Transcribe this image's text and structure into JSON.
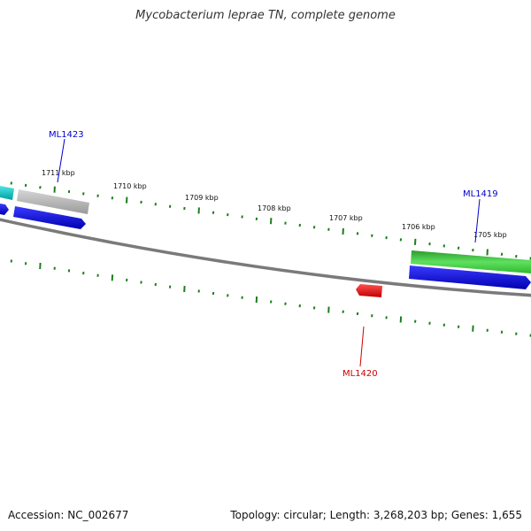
{
  "title": "Mycobacterium leprae TN, complete genome",
  "footer": {
    "accession": "Accession: NC_002677",
    "summary": "Topology: circular; Length: 3,268,203 bp; Genes: 1,655"
  },
  "ruler_labels": [
    "1711 kbp",
    "1710 kbp",
    "1709 kbp",
    "1708 kbp",
    "1707 kbp",
    "1706 kbp",
    "1705 kbp"
  ],
  "gene_labels": {
    "ml1423": "ML1423",
    "ml1419": "ML1419",
    "ml1420": "ML1420"
  },
  "colors": {
    "backbone": "#808080",
    "tick": "#1e7d1e",
    "forward_label": "#0000cc",
    "reverse_label": "#cc0000",
    "cds_blue": "#0000e6",
    "gene_gray": "#b4b4b4",
    "gene_cyan": "#00c8c8",
    "gene_green": "#32c832",
    "gene_red": "#e60000"
  }
}
